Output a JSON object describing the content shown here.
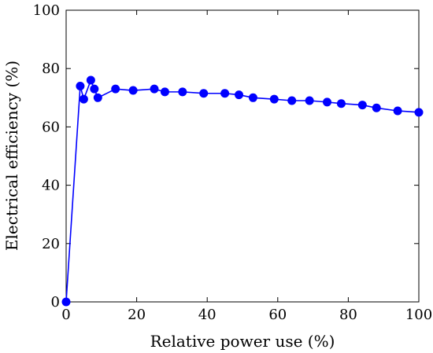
{
  "chart_data": {
    "type": "line",
    "title": "",
    "xlabel": "Relative power use (%)",
    "ylabel": "Electrical efficiency (%)",
    "xlim": [
      0,
      100
    ],
    "ylim": [
      0,
      100
    ],
    "xticks": [
      0,
      20,
      40,
      60,
      80,
      100
    ],
    "yticks": [
      0,
      20,
      40,
      60,
      80,
      100
    ],
    "grid": false,
    "legend": "none",
    "color": "#0000ff",
    "x": [
      0,
      4,
      5,
      7,
      8,
      9,
      14,
      19,
      25,
      28,
      33,
      39,
      45,
      49,
      53,
      59,
      64,
      69,
      74,
      78,
      84,
      88,
      94,
      100
    ],
    "y": [
      0,
      74,
      69.5,
      76,
      73,
      70,
      73,
      72.5,
      73,
      72,
      72,
      71.5,
      71.5,
      71,
      70,
      69.5,
      69,
      69,
      68.5,
      68,
      67.5,
      66.5,
      65.5,
      65
    ]
  }
}
